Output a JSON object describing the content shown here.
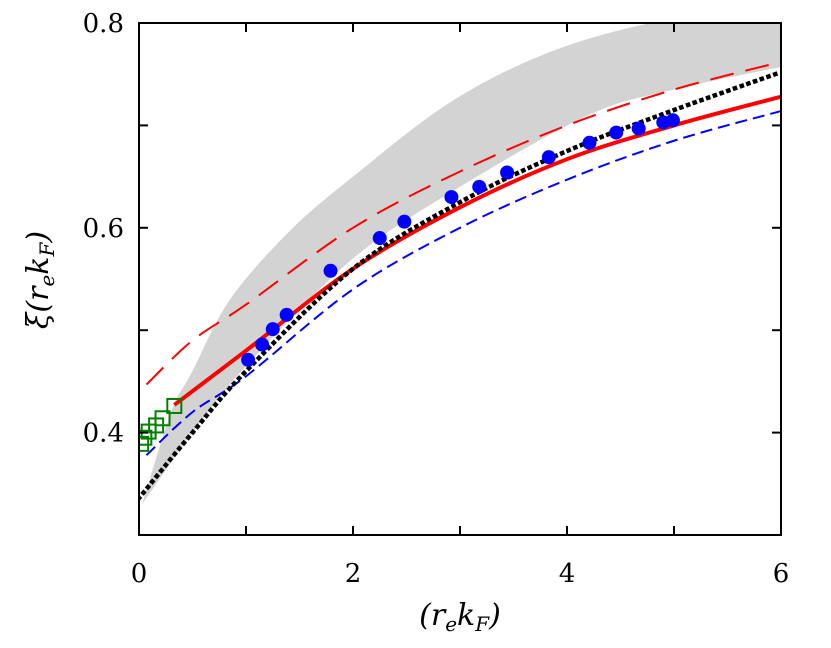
{
  "chart_data": {
    "type": "line",
    "title": "",
    "xlabel": "(r_e k_F)",
    "ylabel": "ξ(r_e k_F)",
    "xlim": [
      0,
      6
    ],
    "ylim": [
      0.3,
      0.8
    ],
    "xticks": [
      0,
      2,
      4,
      6
    ],
    "xtick_labels": [
      "0",
      "2",
      "4",
      "6"
    ],
    "yticks": [
      0.4,
      0.6,
      0.8
    ],
    "ytick_labels": [
      "0.4",
      "0.6",
      "0.8"
    ],
    "grid": false,
    "band": {
      "name": "gray band",
      "color": "#d3d3d3",
      "upper": [
        [
          0.03,
          0.33
        ],
        [
          0.3,
          0.42
        ],
        [
          0.5,
          0.46
        ],
        [
          0.85,
          0.53
        ],
        [
          1.41,
          0.597
        ],
        [
          2,
          0.65
        ],
        [
          2.9,
          0.722
        ],
        [
          3.8,
          0.77
        ],
        [
          4.78,
          0.8
        ],
        [
          6,
          0.82
        ]
      ],
      "lower": [
        [
          0.03,
          0.33
        ],
        [
          0.5,
          0.4
        ],
        [
          1,
          0.465
        ],
        [
          2,
          0.57
        ],
        [
          3,
          0.64
        ],
        [
          4.2,
          0.71
        ],
        [
          5,
          0.735
        ],
        [
          6,
          0.757
        ]
      ]
    },
    "series": [
      {
        "name": "red solid",
        "style": "solid",
        "color": "#ff0000",
        "x": [
          0.33,
          1,
          2,
          3,
          4,
          5,
          6
        ],
        "y": [
          0.427,
          0.48,
          0.56,
          0.62,
          0.667,
          0.7,
          0.728
        ]
      },
      {
        "name": "blue dashed",
        "style": "dashed",
        "color": "#0000ff",
        "x": [
          0.07,
          0.5,
          1,
          2,
          3,
          4,
          5,
          6
        ],
        "y": [
          0.378,
          0.42,
          0.455,
          0.54,
          0.6,
          0.647,
          0.685,
          0.714
        ]
      },
      {
        "name": "red long dashed",
        "style": "longdash",
        "color": "#ff0000",
        "x": [
          0.07,
          0.5,
          1,
          2,
          3,
          4,
          5,
          6
        ],
        "y": [
          0.447,
          0.49,
          0.525,
          0.6,
          0.655,
          0.7,
          0.735,
          0.762
        ]
      },
      {
        "name": "black dotted",
        "style": "dotted",
        "color": "#000000",
        "x": [
          0,
          0.5,
          1,
          2,
          3,
          4,
          5,
          6
        ],
        "y": [
          0.336,
          0.4,
          0.46,
          0.56,
          0.625,
          0.675,
          0.715,
          0.752
        ]
      }
    ],
    "points": [
      {
        "name": "blue circles",
        "marker": "circle",
        "color": "#0000ff",
        "x": [
          1.02,
          1.15,
          1.25,
          1.38,
          1.79,
          2.25,
          2.48,
          2.92,
          3.18,
          3.44,
          3.83,
          4.21,
          4.46,
          4.67,
          4.9,
          4.99
        ],
        "y": [
          0.471,
          0.486,
          0.501,
          0.515,
          0.558,
          0.59,
          0.606,
          0.63,
          0.64,
          0.654,
          0.669,
          0.683,
          0.693,
          0.697,
          0.703,
          0.705
        ]
      },
      {
        "name": "green squares",
        "marker": "square",
        "color": "#008000",
        "x": [
          0.02,
          0.05,
          0.09,
          0.16,
          0.22,
          0.33
        ],
        "y": [
          0.389,
          0.395,
          0.401,
          0.407,
          0.414,
          0.426
        ]
      }
    ]
  }
}
